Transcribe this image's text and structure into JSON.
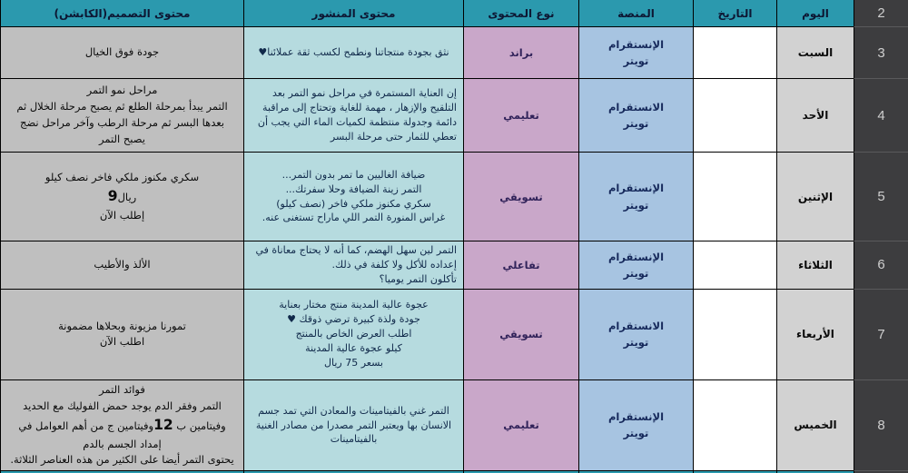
{
  "colors": {
    "header_bg": "#2b99ae",
    "header_text": "#0d1733",
    "caption_bg": "#bfbfbf",
    "post_bg": "#b6dbdf",
    "post_text": "#10294a",
    "type_bg": "#c9a7c9",
    "type_text": "#31235a",
    "platform_bg": "#a7c4e1",
    "platform_text": "#16295b",
    "date_bg": "#ffffff",
    "day_bg": "#d2d2d2",
    "rownum_bg": "#3d3d3f",
    "rownum_text": "#cfcfcf",
    "border": "#000000"
  },
  "header": {
    "row_num": "2",
    "day": "اليوم",
    "date": "التاريخ",
    "platform": "المنصة",
    "type": "نوع المحتوى",
    "post": "محتوى المنشور",
    "caption": "محتوى التصميم(الكابشن)"
  },
  "rows": [
    {
      "row_num": "3",
      "day": "السبت",
      "date": "",
      "platform_lines": [
        "الإنستقرام",
        "تويتر"
      ],
      "type": "براند",
      "post_lines": [
        "نثق بجودة منتجاتنا ونطمح لكسب ثقة عملائنا♥"
      ],
      "caption_lines": [
        "جودة فوق الخيال"
      ]
    },
    {
      "row_num": "4",
      "day": "الأحد",
      "date": "",
      "platform_lines": [
        "الانستقرام",
        "تويتر"
      ],
      "type": "تعليمي",
      "post_lines": [
        "إن العناية المستمرة في مراحل نمو التمر بعد التلقيح والإزهار ، مهمة للغاية وتحتاج إلى مراقبة دائمة وجدولة منتظمة لكميات الماء التي يجب أن تعطي للثمار حتى مرحلة البسر"
      ],
      "caption_lines": [
        "مراحل نمو التمر",
        "التمر  يبدأ بمرحلة الطلع ثم يصبح مرحلة الخلال ثم بعدها البسر ثم مرحلة الرطب وآخر مراحل نضج يصبح التمر"
      ]
    },
    {
      "row_num": "5",
      "day": "الإثنين",
      "date": "",
      "platform_lines": [
        "الإنستقرام",
        "تويتر"
      ],
      "type": "تسويقي",
      "post_lines": [
        "ضيافة الغاليين ما تمر بدون التمر...",
        "التمر زينة الضيافة وحلا سفرتك...",
        "سكري مكنوز ملكي فاخر (نصف كيلو)",
        "غراس المنورة التمر اللي ماراح تستغنى عنه."
      ],
      "caption_lines": [
        "سكري مكنوز ملكي فاخر نصف كيلو",
        "9ريال",
        "إطلب الآن"
      ]
    },
    {
      "row_num": "6",
      "day": "الثلاثاء",
      "date": "",
      "platform_lines": [
        "الإنستقرام",
        "تويتر"
      ],
      "type": "تفاعلي",
      "post_lines": [
        "التمر لين سهل الهضم، كما أنه لا يحتاج معاناة في إعداده للأكل ولا كلفة في ذلك.",
        "تأكلون التمر يوميا؟"
      ],
      "caption_lines": [
        "الألذ والأطيب"
      ]
    },
    {
      "row_num": "7",
      "day": "الأربعاء",
      "date": "",
      "platform_lines": [
        "الانستقرام",
        "تويتر"
      ],
      "type": "تسويقي",
      "post_lines": [
        "عجوة عالية المدينة منتج مختار بعناية",
        "جودة ولذة كبيرة ترضي ذوقك ♥",
        "اطلب العرض الخاص بالمنتج",
        "كيلو عجوة عالية المدينة",
        "بسعر 75 ريال"
      ],
      "caption_lines": [
        "تمورنا مزيونة وبحلاها مضمونة",
        "اطلب الآن"
      ]
    },
    {
      "row_num": "8",
      "day": "الخميس",
      "date": "",
      "platform_lines": [
        "الإنستقرام",
        "تويتر"
      ],
      "type": "تعليمي",
      "post_lines": [
        "التمر غني بالفيتامينات والمعادن التي تمد جسم الانسان بها ويعتبر التمر مصدرا من مصادر الغنية بالفيتامينات"
      ],
      "caption_lines": [
        "فوائد التمر",
        "التمر وفقر الدم يوجد حمض الفوليك مع الحديد",
        "وفيتامين ب 12وفيتامين ج من أهم العوامل في إمداد الجسم بالدم",
        "يحتوى التمر أيضا على الكثير من هذه العناصر الثلاثة."
      ]
    }
  ]
}
